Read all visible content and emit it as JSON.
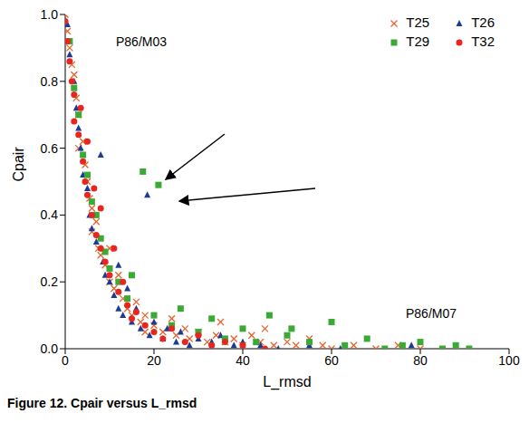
{
  "chart_data": {
    "type": "scatter",
    "caption": "Figure 12. Cpair versus L_rmsd",
    "x_label": "L_rmsd",
    "y_label": "Cpair",
    "xlim": [
      0,
      100
    ],
    "xticks": [
      0,
      20,
      40,
      60,
      80,
      100
    ],
    "ylim": [
      0,
      1
    ],
    "yticks": [
      {
        "value": 0,
        "label": "0.0"
      },
      {
        "value": 0.2,
        "label": "0.2"
      },
      {
        "value": 0.4,
        "label": "0.4"
      },
      {
        "value": 0.6,
        "label": "0.6"
      },
      {
        "value": 0.8,
        "label": "0.8"
      },
      {
        "value": 1,
        "label": "1.0"
      }
    ],
    "legend": "upper right",
    "grid": false,
    "annotations": [
      "P86/M03",
      "P86/M07"
    ],
    "series": [
      {
        "name": "T25",
        "color": "#e8632b",
        "marker": "x",
        "x": [
          0,
          0.5,
          1,
          1.5,
          2,
          2.5,
          3,
          3,
          4,
          4.5,
          5,
          5.5,
          6,
          6,
          7,
          7.5,
          8,
          9,
          10,
          10,
          11,
          12,
          13,
          14,
          15,
          16,
          17,
          18,
          18,
          20,
          22,
          24,
          25,
          27,
          28,
          30,
          32,
          34,
          35,
          36,
          38,
          40,
          42,
          44,
          45,
          47,
          50,
          52,
          55,
          58,
          60,
          65,
          70,
          75,
          80
        ],
        "y": [
          1.0,
          0.95,
          0.9,
          0.85,
          0.82,
          0.75,
          0.7,
          0.6,
          0.62,
          0.55,
          0.5,
          0.45,
          0.42,
          0.35,
          0.38,
          0.3,
          0.28,
          0.25,
          0.2,
          0.3,
          0.18,
          0.22,
          0.15,
          0.12,
          0.1,
          0.14,
          0.08,
          0.1,
          0.05,
          0.07,
          0.05,
          0.09,
          0.04,
          0.06,
          0.03,
          0.05,
          0.02,
          0.04,
          0.08,
          0.02,
          0.03,
          0.01,
          0.04,
          0.02,
          0.06,
          0.01,
          0.02,
          0.01,
          0.03,
          0.01,
          0.0,
          0.01,
          0.0,
          0.01,
          0.0
        ]
      },
      {
        "name": "T26",
        "color": "#1f3a93",
        "marker": "triangle",
        "x": [
          0.5,
          1,
          2,
          2.5,
          3,
          3.5,
          4,
          5,
          5.5,
          6,
          7,
          8,
          8.5,
          9,
          10,
          11,
          12,
          12,
          13,
          14,
          15,
          16,
          18.5,
          17,
          19,
          20,
          22,
          23,
          25,
          26,
          28,
          30,
          33,
          35,
          38,
          40,
          44,
          48,
          55,
          62,
          78
        ],
        "y": [
          0.97,
          0.88,
          0.8,
          0.72,
          0.66,
          0.6,
          0.52,
          0.48,
          0.4,
          0.36,
          0.32,
          0.58,
          0.26,
          0.22,
          0.2,
          0.16,
          0.25,
          0.12,
          0.1,
          0.18,
          0.08,
          0.12,
          0.46,
          0.06,
          0.04,
          0.08,
          0.03,
          0.06,
          0.02,
          0.05,
          0.01,
          0.03,
          0.02,
          0.04,
          0.01,
          0.02,
          0.01,
          0.0,
          0.01,
          0.0,
          0.01
        ]
      },
      {
        "name": "T29",
        "color": "#3aaa35",
        "marker": "square",
        "x": [
          1,
          2,
          3,
          4,
          5,
          6,
          7,
          8,
          9,
          10,
          12,
          14,
          15,
          17.5,
          21,
          20,
          24,
          26,
          30,
          33,
          36,
          40,
          43,
          46,
          50,
          51,
          55,
          60,
          63,
          68,
          72,
          76,
          80,
          85,
          88,
          91
        ],
        "y": [
          0.92,
          0.78,
          0.7,
          0.58,
          0.52,
          0.44,
          0.4,
          0.33,
          0.29,
          0.24,
          0.2,
          0.15,
          0.22,
          0.53,
          0.49,
          0.1,
          0.07,
          0.12,
          0.05,
          0.09,
          0.03,
          0.06,
          0.02,
          0.1,
          0.04,
          0.06,
          0.02,
          0.08,
          0.01,
          0.03,
          0.0,
          0.01,
          0.02,
          0.0,
          0.01,
          0.0
        ]
      },
      {
        "name": "T32",
        "color": "#e8251f",
        "marker": "circle",
        "x": [
          0,
          0.5,
          1,
          1.5,
          2,
          2,
          3,
          3.5,
          4,
          4.5,
          5,
          5,
          6,
          6.5,
          7,
          8,
          8,
          9,
          10,
          11,
          12,
          13,
          14,
          15,
          16,
          18,
          20,
          22,
          24,
          27,
          30,
          33,
          36,
          40,
          45
        ],
        "y": [
          0.98,
          0.92,
          0.86,
          0.8,
          0.76,
          0.68,
          0.64,
          0.72,
          0.56,
          0.5,
          0.46,
          0.62,
          0.4,
          0.48,
          0.34,
          0.3,
          0.42,
          0.26,
          0.22,
          0.3,
          0.17,
          0.2,
          0.13,
          0.09,
          0.11,
          0.07,
          0.05,
          0.03,
          0.06,
          0.02,
          0.04,
          0.01,
          0.02,
          0.01,
          0.0
        ]
      }
    ]
  }
}
